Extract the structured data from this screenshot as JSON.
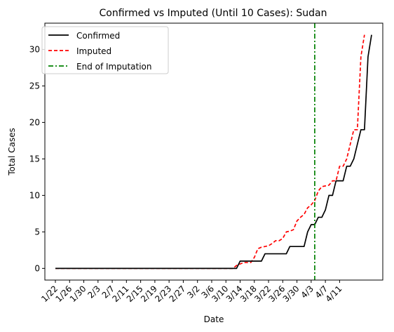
{
  "chart_data": {
    "type": "line",
    "title": "Confirmed vs Imputed (Until 10 Cases): Sudan",
    "xlabel": "Date",
    "ylabel": "Total Cases",
    "ylim": [
      -1.6,
      33.6
    ],
    "yticks": [
      0,
      5,
      10,
      15,
      20,
      25,
      30
    ],
    "xtick_labels": [
      "1/22",
      "1/26",
      "1/30",
      "2/3",
      "2/7",
      "2/11",
      "2/15",
      "2/19",
      "2/23",
      "2/27",
      "3/2",
      "3/6",
      "3/10",
      "3/14",
      "3/18",
      "3/22",
      "3/26",
      "3/30",
      "4/3",
      "4/7",
      "4/11"
    ],
    "x_start": "1/22",
    "x_end": "4/14",
    "grid": false,
    "legend_position": "upper-left",
    "series": [
      {
        "name": "Confirmed",
        "color": "#000000",
        "style": "solid",
        "values": [
          0,
          0,
          0,
          0,
          0,
          0,
          0,
          0,
          0,
          0,
          0,
          0,
          0,
          0,
          0,
          0,
          0,
          0,
          0,
          0,
          0,
          0,
          0,
          0,
          0,
          0,
          0,
          0,
          0,
          0,
          0,
          0,
          0,
          0,
          0,
          0,
          0,
          0,
          0,
          0,
          0,
          0,
          0,
          0,
          0,
          0,
          0,
          0,
          0,
          0,
          0,
          0,
          1,
          1,
          1,
          1,
          1,
          1,
          1,
          2,
          2,
          2,
          2,
          2,
          2,
          2,
          3,
          3,
          3,
          3,
          3,
          5,
          6,
          6,
          7,
          7,
          8,
          10,
          10,
          12,
          12,
          12,
          14,
          14,
          15,
          17,
          19,
          19,
          29,
          32
        ]
      },
      {
        "name": "Imputed",
        "color": "#ff0000",
        "style": "dashed",
        "values": [
          0,
          0,
          0,
          0,
          0,
          0,
          0,
          0,
          0,
          0,
          0,
          0,
          0,
          0,
          0,
          0,
          0,
          0,
          0,
          0,
          0,
          0,
          0,
          0,
          0,
          0,
          0,
          0,
          0,
          0,
          0,
          0,
          0,
          0,
          0,
          0,
          0,
          0,
          0,
          0,
          0,
          0,
          0,
          0,
          0,
          0,
          0,
          0,
          0,
          0,
          0,
          0.4,
          0.6,
          0.8,
          0.8,
          0.8,
          1.5,
          2.7,
          2.9,
          3.0,
          3.1,
          3.4,
          3.8,
          3.8,
          4.1,
          5.0,
          5.1,
          5.3,
          6.5,
          7.0,
          7.4,
          8.3,
          8.7,
          9.3,
          10.6,
          11.2,
          11.3,
          11.4,
          12,
          12,
          14,
          14,
          15,
          17,
          19,
          19,
          29,
          32
        ]
      }
    ],
    "vline": {
      "name": "End of Imputation",
      "x": "4/4",
      "color": "#008000",
      "style": "dashdot"
    }
  }
}
